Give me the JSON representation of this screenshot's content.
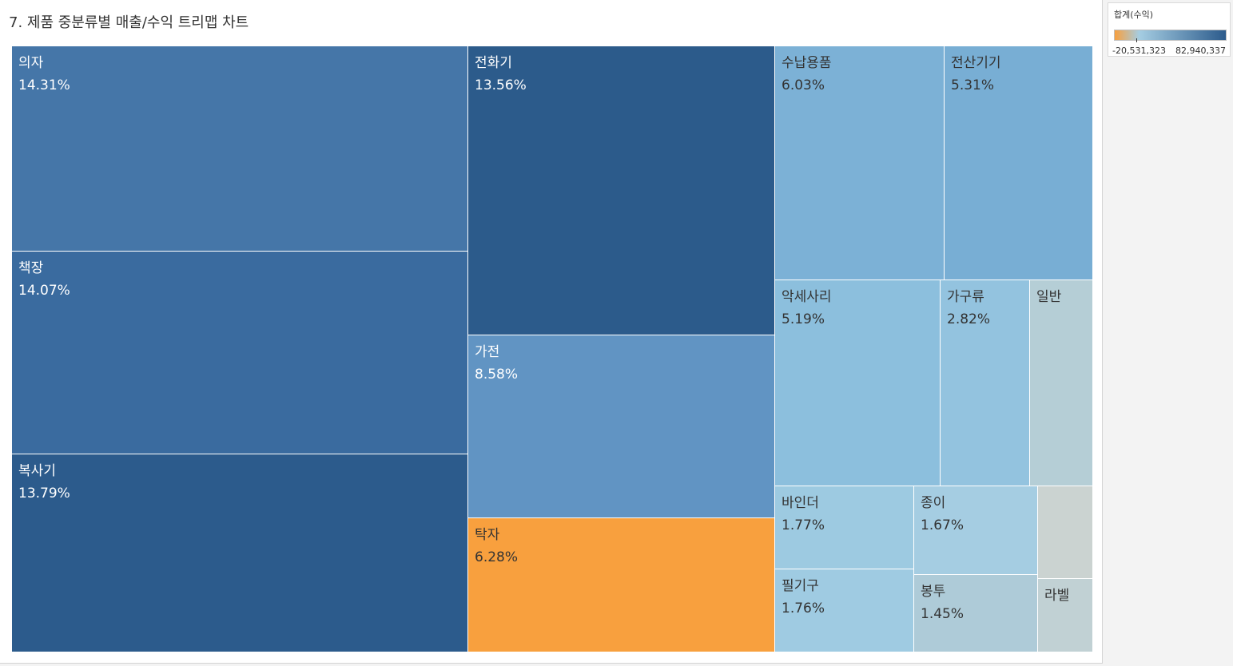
{
  "chart_data": {
    "type": "treemap",
    "title": "7. 제품 중분류별 매출/수익 트리맵 차트",
    "size_measure": "매출",
    "color_measure": "합계(수익)",
    "color_legend": {
      "title": "합계(수익)",
      "min_label": "-20,531,323",
      "max_label": "82,940,337",
      "min": -20531323,
      "max": 82940337,
      "colors": [
        "#f8a03e",
        "#a5cde2",
        "#2c5b8c"
      ]
    },
    "items": [
      {
        "name": "의자",
        "share": 14.31,
        "share_label": "14.31%",
        "color": "#4576a8"
      },
      {
        "name": "책장",
        "share": 14.07,
        "share_label": "14.07%",
        "color": "#3a6b9f"
      },
      {
        "name": "복사기",
        "share": 13.79,
        "share_label": "13.79%",
        "color": "#2c5b8c"
      },
      {
        "name": "전화기",
        "share": 13.56,
        "share_label": "13.56%",
        "color": "#2c5b8b"
      },
      {
        "name": "가전",
        "share": 8.58,
        "share_label": "8.58%",
        "color": "#6194c3"
      },
      {
        "name": "탁자",
        "share": 6.28,
        "share_label": "6.28%",
        "color": "#f8a03e"
      },
      {
        "name": "수납용품",
        "share": 6.03,
        "share_label": "6.03%",
        "color": "#7cb1d6"
      },
      {
        "name": "전산기기",
        "share": 5.31,
        "share_label": "5.31%",
        "color": "#78aed4"
      },
      {
        "name": "악세사리",
        "share": 5.19,
        "share_label": "5.19%",
        "color": "#8cbfdd"
      },
      {
        "name": "가구류",
        "share": 2.82,
        "share_label": "2.82%",
        "color": "#93c3df"
      },
      {
        "name": "일반",
        "share": null,
        "share_label": "",
        "color": "#b5ced6"
      },
      {
        "name": "바인더",
        "share": 1.77,
        "share_label": "1.77%",
        "color": "#9dcae1"
      },
      {
        "name": "필기구",
        "share": 1.76,
        "share_label": "1.76%",
        "color": "#9fcbe2"
      },
      {
        "name": "종이",
        "share": 1.67,
        "share_label": "1.67%",
        "color": "#a5cde2"
      },
      {
        "name": "봉투",
        "share": 1.45,
        "share_label": "1.45%",
        "color": "#aecbd8"
      },
      {
        "name": "",
        "share": null,
        "share_label": "",
        "color": "#cbd3d1"
      },
      {
        "name": "라벨",
        "share": null,
        "share_label": "",
        "color": "#c1d1d4"
      }
    ]
  }
}
